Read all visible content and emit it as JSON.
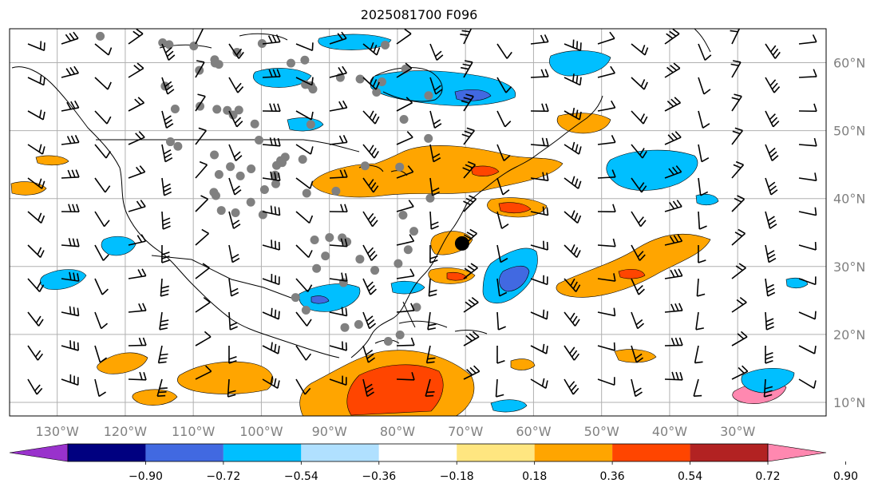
{
  "title": "2025081700 F096",
  "map": {
    "lon_range": [
      -137,
      -17
    ],
    "lat_range": [
      8,
      65
    ],
    "lon_ticks": [
      {
        "value": -130,
        "label": "130°W"
      },
      {
        "value": -120,
        "label": "120°W"
      },
      {
        "value": -110,
        "label": "110°W"
      },
      {
        "value": -100,
        "label": "100°W"
      },
      {
        "value": -90,
        "label": "90°W"
      },
      {
        "value": -80,
        "label": "80°W"
      },
      {
        "value": -70,
        "label": "70°W"
      },
      {
        "value": -60,
        "label": "60°W"
      },
      {
        "value": -50,
        "label": "50°W"
      },
      {
        "value": -40,
        "label": "40°W"
      },
      {
        "value": -30,
        "label": "30°W"
      }
    ],
    "lat_ticks": [
      {
        "value": 60,
        "label": "60°N"
      },
      {
        "value": 50,
        "label": "50°N"
      },
      {
        "value": 40,
        "label": "40°N"
      },
      {
        "value": 30,
        "label": "30°N"
      },
      {
        "value": 20,
        "label": "20°N"
      },
      {
        "value": 10,
        "label": "10°N"
      }
    ],
    "grid": true,
    "storm_marker": {
      "lon": -70.5,
      "lat": 33.4
    },
    "fill_colors": {
      "orange": "#ffa500",
      "red_orange": "#ff4500",
      "sky": "#00bfff",
      "royal": "#4169e1",
      "dark_red": "#b22222"
    }
  },
  "colorbar": {
    "levels": [
      "−0.90",
      "−0.72",
      "−0.54",
      "−0.36",
      "−0.18",
      "0.18",
      "0.36",
      "0.54",
      "0.72",
      "0.90"
    ],
    "colors": [
      "#9932cc",
      "#000080",
      "#4169e1",
      "#00bfff",
      "#b0e0ff",
      "#ffffff",
      "#ffe680",
      "#ffa500",
      "#ff4500",
      "#b22222",
      "#ff88b0"
    ]
  }
}
